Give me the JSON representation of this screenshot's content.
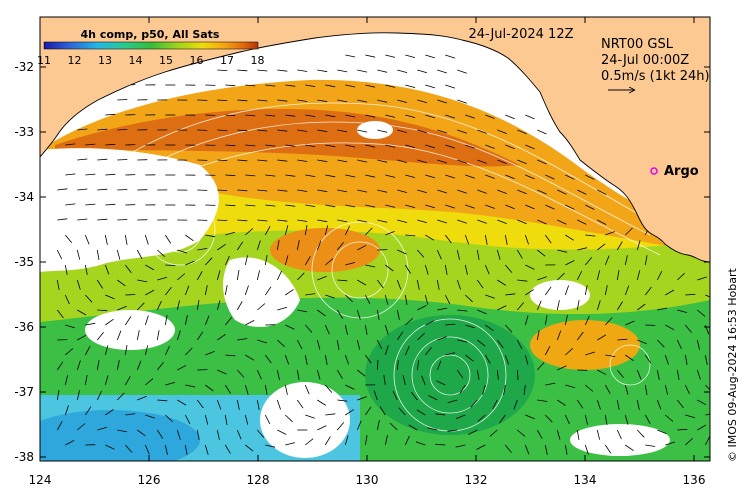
{
  "map": {
    "product_label": "4h comp, p50, All Sats",
    "colorbar_ticks": [
      "11",
      "12",
      "13",
      "14",
      "15",
      "16",
      "17",
      "18"
    ],
    "date_label": "24-Jul-2024 12Z",
    "current_source": "NRT00 GSL",
    "current_time": "24-Jul 00:00Z",
    "scale_arrow_label": "0.5m/s (1kt 24h)",
    "argo_label": "Argo",
    "credit": "© IMOS 09-Aug-2024 16:53 Hobart",
    "x_ticks": [
      "124",
      "126",
      "128",
      "130",
      "132",
      "134",
      "136"
    ],
    "y_ticks": [
      "-32",
      "-33",
      "-34",
      "-35",
      "-36",
      "-37",
      "-38"
    ],
    "colors": {
      "land": "#fdc993",
      "argo_marker": "#e600e6",
      "colormap": [
        "#1a1aa8",
        "#2e64d8",
        "#23b7e6",
        "#2ac990",
        "#35be3c",
        "#9bd21e",
        "#eedc0c",
        "#f4a010",
        "#e06a0c",
        "#b23206"
      ]
    }
  }
}
